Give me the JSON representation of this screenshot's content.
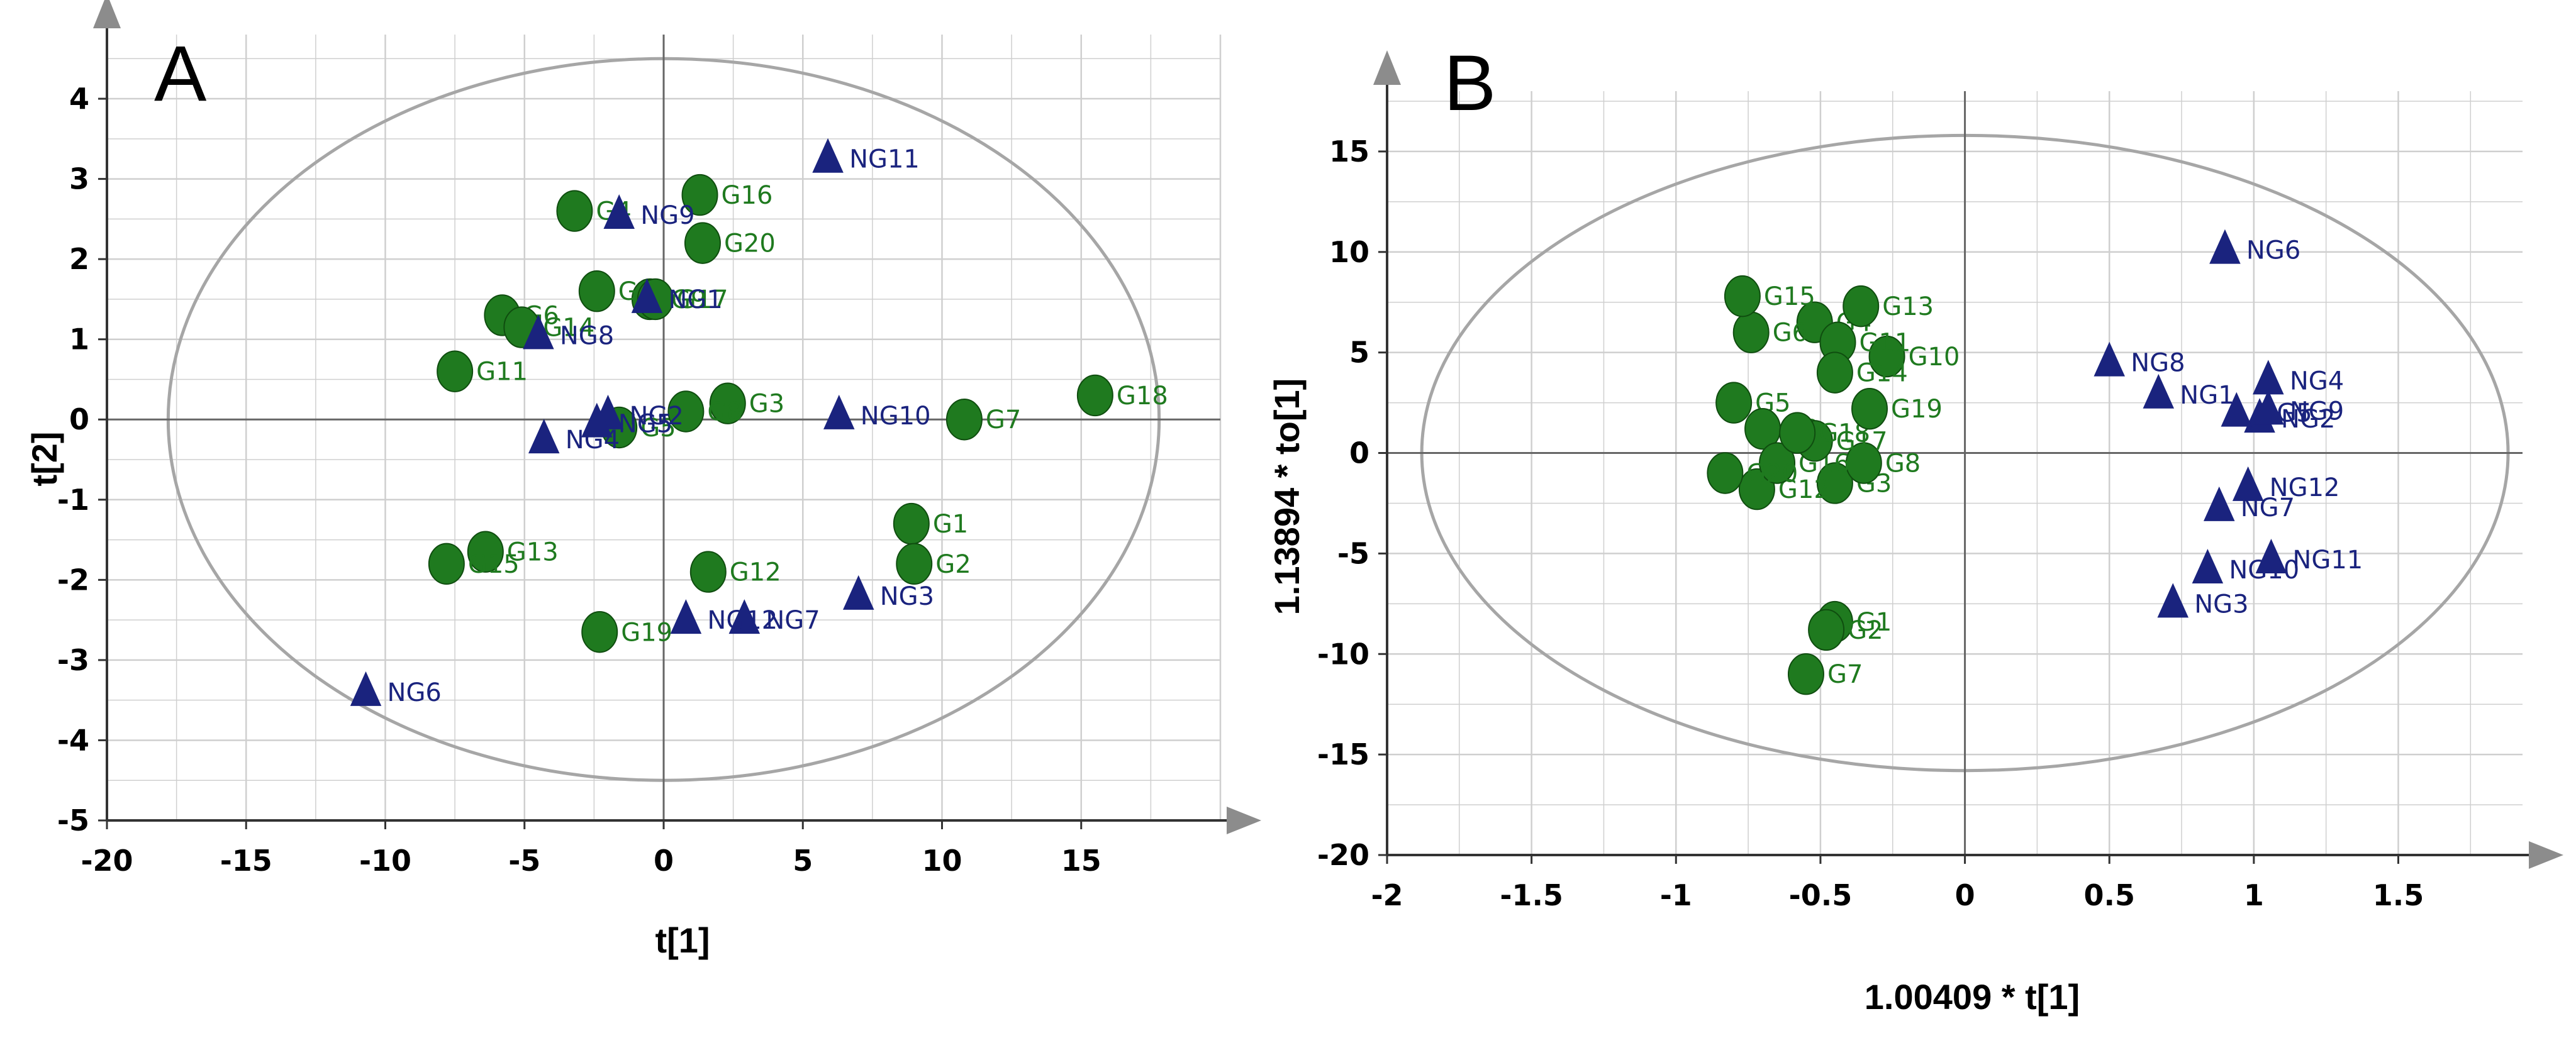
{
  "colors": {
    "group_g": "#1f7a1f",
    "group_ng": "#1a237e",
    "grid": "#cfcfcf",
    "frame": "#333333",
    "ellipse": "#a6a6a6",
    "axis_arrow": "#8c8c8c",
    "zero_line": "#666666"
  },
  "chart_data": [
    {
      "type": "scatter",
      "panel": "A",
      "xlabel": "t[1]",
      "ylabel": "t[2]",
      "xlim": [
        -20,
        20
      ],
      "ylim": [
        -5,
        4.8
      ],
      "xticks": [
        -20,
        -15,
        -10,
        -5,
        0,
        5,
        10,
        15
      ],
      "yticks": [
        -5,
        -4,
        -3,
        -2,
        -1,
        0,
        1,
        2,
        3,
        4
      ],
      "ellipse": {
        "center": [
          0,
          0
        ],
        "rx": 17.8,
        "ry": 4.5
      },
      "series": [
        {
          "name": "G",
          "marker": "circle",
          "points": [
            {
              "label": "G1",
              "x": 8.9,
              "y": -1.3
            },
            {
              "label": "G2",
              "x": 9.0,
              "y": -1.8
            },
            {
              "label": "G3",
              "x": 2.3,
              "y": 0.2
            },
            {
              "label": "G4",
              "x": -3.2,
              "y": 2.6
            },
            {
              "label": "G5",
              "x": -1.6,
              "y": -0.1
            },
            {
              "label": "G6",
              "x": -5.8,
              "y": 1.3
            },
            {
              "label": "G7",
              "x": 10.8,
              "y": 0.0
            },
            {
              "label": "G8",
              "x": 0.8,
              "y": 0.1
            },
            {
              "label": "G9",
              "x": -0.5,
              "y": 1.5
            },
            {
              "label": "G10",
              "x": -2.4,
              "y": 1.6
            },
            {
              "label": "G11",
              "x": -7.5,
              "y": 0.6
            },
            {
              "label": "G12",
              "x": 1.6,
              "y": -1.9
            },
            {
              "label": "G13",
              "x": -6.4,
              "y": -1.65
            },
            {
              "label": "G14",
              "x": -5.1,
              "y": 1.15
            },
            {
              "label": "G15",
              "x": -7.8,
              "y": -1.8
            },
            {
              "label": "G16",
              "x": 1.3,
              "y": 2.8
            },
            {
              "label": "G17",
              "x": -0.3,
              "y": 1.5
            },
            {
              "label": "G18",
              "x": 15.5,
              "y": 0.3
            },
            {
              "label": "G19",
              "x": -2.3,
              "y": -2.65
            },
            {
              "label": "G20",
              "x": 1.4,
              "y": 2.2
            }
          ]
        },
        {
          "name": "NG",
          "marker": "triangle",
          "points": [
            {
              "label": "NG1",
              "x": -0.6,
              "y": 1.5
            },
            {
              "label": "NG2",
              "x": -2.0,
              "y": 0.05
            },
            {
              "label": "NG3",
              "x": 7.0,
              "y": -2.2
            },
            {
              "label": "NG4",
              "x": -4.3,
              "y": -0.25
            },
            {
              "label": "NG5",
              "x": -2.4,
              "y": -0.05
            },
            {
              "label": "NG6",
              "x": -10.7,
              "y": -3.4
            },
            {
              "label": "NG7",
              "x": 2.9,
              "y": -2.5
            },
            {
              "label": "NG8",
              "x": -4.5,
              "y": 1.05
            },
            {
              "label": "NG9",
              "x": -1.6,
              "y": 2.55
            },
            {
              "label": "NG10",
              "x": 6.3,
              "y": 0.05
            },
            {
              "label": "NG11",
              "x": 5.9,
              "y": 3.25
            },
            {
              "label": "NG12",
              "x": 0.8,
              "y": -2.5
            }
          ]
        }
      ]
    },
    {
      "type": "scatter",
      "panel": "B",
      "xlabel": "1.00409 * t[1]",
      "ylabel": "1.13894 * to[1]",
      "xlim": [
        -2,
        1.93
      ],
      "ylim": [
        -20,
        18
      ],
      "xticks": [
        -2,
        -1.5,
        -1,
        -0.5,
        0,
        0.5,
        1,
        1.5
      ],
      "yticks": [
        -20,
        -15,
        -10,
        -5,
        0,
        5,
        10,
        15
      ],
      "ellipse": {
        "center": [
          0,
          0
        ],
        "rx": 1.88,
        "ry": 15.8
      },
      "series": [
        {
          "name": "G",
          "marker": "circle",
          "points": [
            {
              "label": "G1",
              "x": -0.45,
              "y": -8.4
            },
            {
              "label": "G2",
              "x": -0.48,
              "y": -8.8
            },
            {
              "label": "G3",
              "x": -0.45,
              "y": -1.5
            },
            {
              "label": "G4",
              "x": -0.52,
              "y": 6.5
            },
            {
              "label": "G5",
              "x": -0.8,
              "y": 2.5
            },
            {
              "label": "G6",
              "x": -0.74,
              "y": 6.0
            },
            {
              "label": "G7",
              "x": -0.55,
              "y": -11.0
            },
            {
              "label": "G8",
              "x": -0.35,
              "y": -0.5
            },
            {
              "label": "G9",
              "x": -0.7,
              "y": 1.2
            },
            {
              "label": "G10",
              "x": -0.27,
              "y": 4.8
            },
            {
              "label": "G11",
              "x": -0.44,
              "y": 5.5
            },
            {
              "label": "G12",
              "x": -0.72,
              "y": -1.8
            },
            {
              "label": "G13",
              "x": -0.36,
              "y": 7.3
            },
            {
              "label": "G14",
              "x": -0.45,
              "y": 4.0
            },
            {
              "label": "G15",
              "x": -0.77,
              "y": 7.8
            },
            {
              "label": "G16",
              "x": -0.65,
              "y": -0.5
            },
            {
              "label": "G17",
              "x": -0.52,
              "y": 0.6
            },
            {
              "label": "G18",
              "x": -0.58,
              "y": 1.0
            },
            {
              "label": "G19",
              "x": -0.33,
              "y": 2.2
            },
            {
              "label": "G20",
              "x": -0.83,
              "y": -1.0
            }
          ]
        },
        {
          "name": "NG",
          "marker": "triangle",
          "points": [
            {
              "label": "NG1",
              "x": 0.67,
              "y": 2.9
            },
            {
              "label": "NG2",
              "x": 1.02,
              "y": 1.7
            },
            {
              "label": "NG3",
              "x": 0.72,
              "y": -7.5
            },
            {
              "label": "NG4",
              "x": 1.05,
              "y": 3.6
            },
            {
              "label": "NG5",
              "x": 0.94,
              "y": 2.0
            },
            {
              "label": "NG6",
              "x": 0.9,
              "y": 10.1
            },
            {
              "label": "NG7",
              "x": 0.88,
              "y": -2.7
            },
            {
              "label": "NG8",
              "x": 0.5,
              "y": 4.5
            },
            {
              "label": "NG9",
              "x": 1.05,
              "y": 2.1
            },
            {
              "label": "NG10",
              "x": 0.84,
              "y": -5.8
            },
            {
              "label": "NG11",
              "x": 1.06,
              "y": -5.3
            },
            {
              "label": "NG12",
              "x": 0.98,
              "y": -1.7
            }
          ]
        }
      ]
    }
  ]
}
